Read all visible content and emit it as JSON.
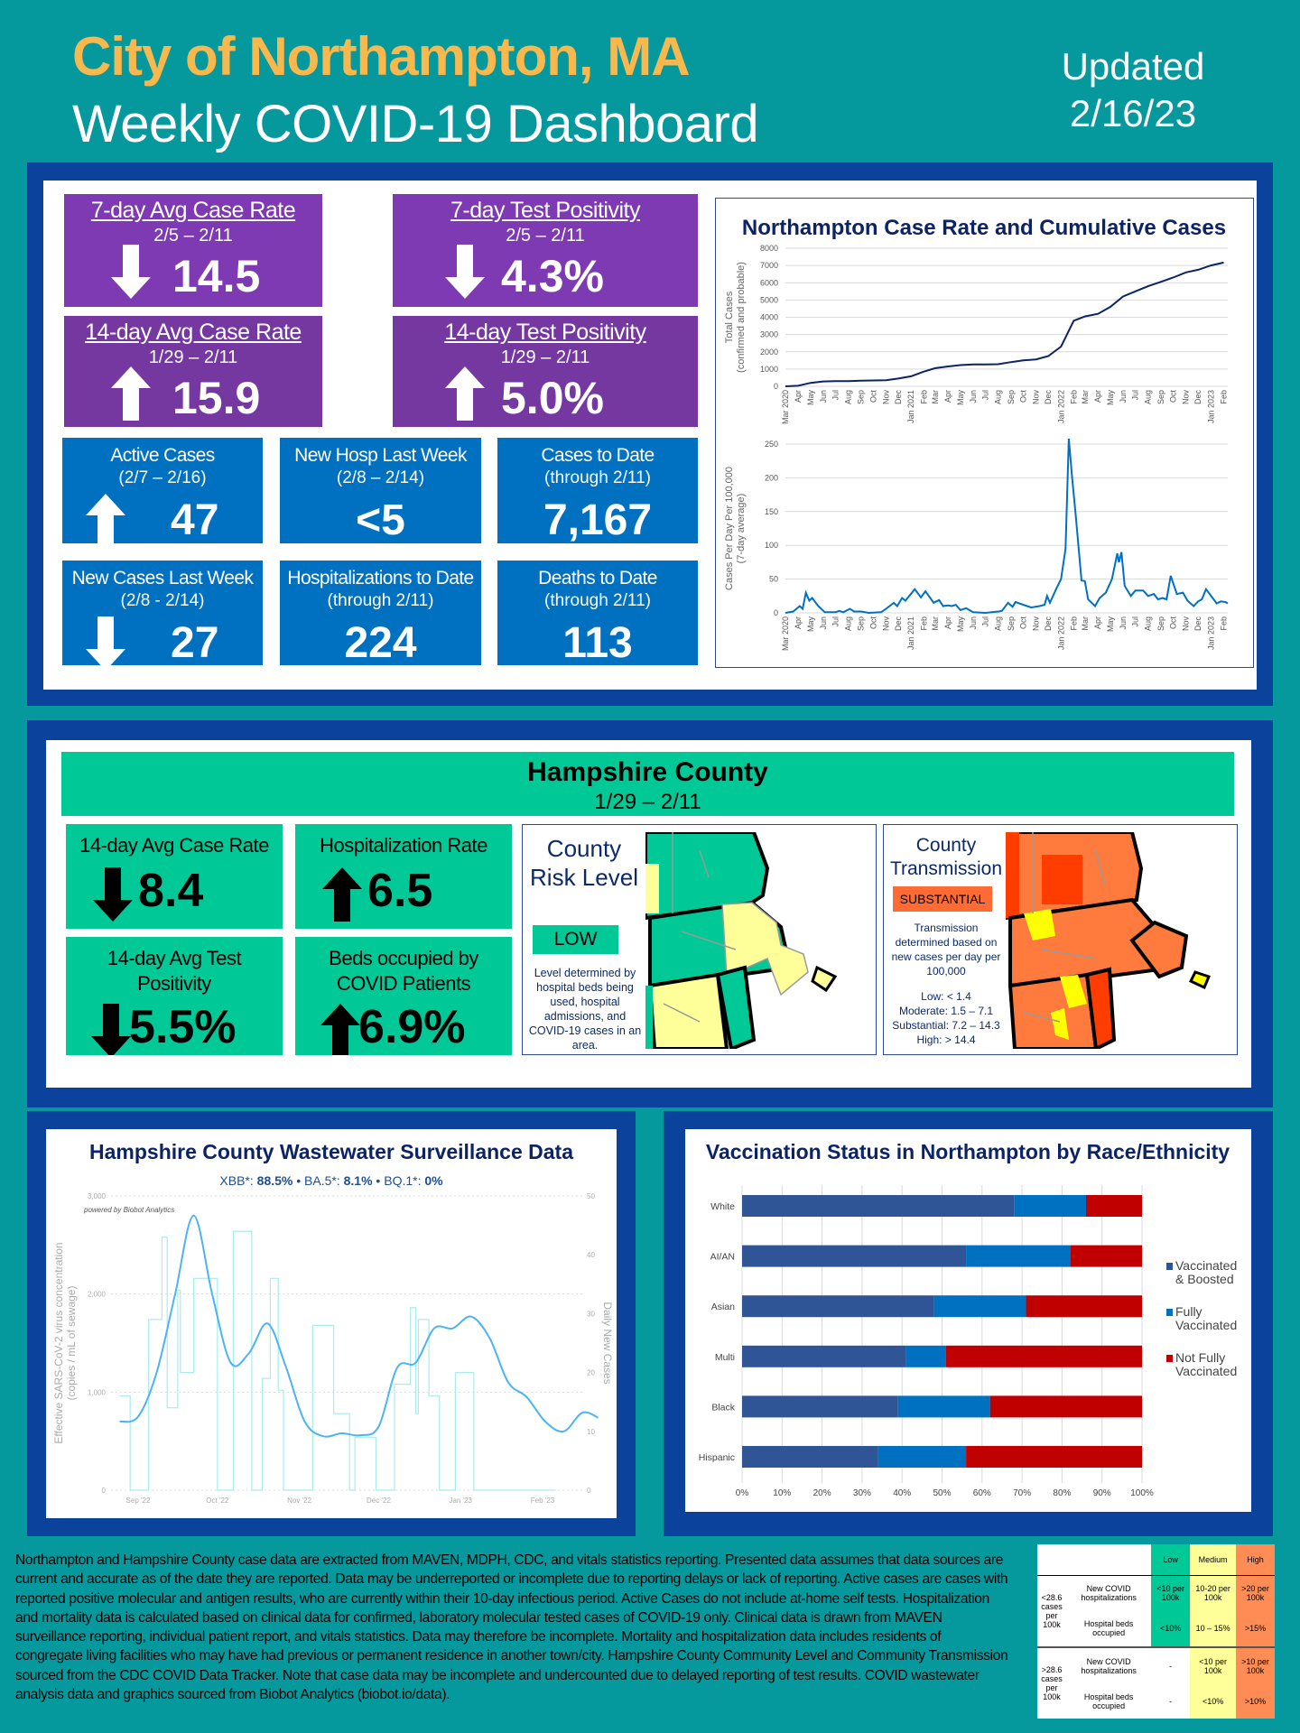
{
  "header": {
    "city": "City of Northampton, MA",
    "title": "Weekly COVID-19 Dashboard",
    "updated_label": "Updated",
    "updated_date": "2/16/23"
  },
  "city_cards": [
    {
      "title": "7-day Avg Case Rate",
      "dates": "2/5 – 2/11",
      "value": "14.5",
      "trend": "down"
    },
    {
      "title": "7-day Test Positivity",
      "dates": "2/5 – 2/11",
      "value": "4.3%",
      "trend": "down"
    },
    {
      "title": "14-day Avg Case Rate",
      "dates": "1/29 – 2/11",
      "value": "15.9",
      "trend": "up"
    },
    {
      "title": "14-day Test Positivity",
      "dates": "1/29 – 2/11",
      "value": "5.0%",
      "trend": "up"
    },
    {
      "title": "Active Cases",
      "dates": "(2/7 – 2/16)",
      "value": "47",
      "trend": "up"
    },
    {
      "title": "New Hosp Last Week",
      "dates": "(2/8 – 2/14)",
      "value": "<5",
      "trend": "none"
    },
    {
      "title": "Cases to Date",
      "dates": "(through 2/11)",
      "value": "7,167",
      "trend": "none"
    },
    {
      "title": "New Cases Last Week",
      "dates": "(2/8 - 2/14)",
      "value": "27",
      "trend": "down"
    },
    {
      "title": "Hospitalizations to Date",
      "dates": "(through 2/11)",
      "value": "224",
      "trend": "none"
    },
    {
      "title": "Deaths to Date",
      "dates": "(through 2/11)",
      "value": "113",
      "trend": "none"
    }
  ],
  "county": {
    "title": "Hampshire County",
    "dates": "1/29 – 2/11",
    "cards": [
      {
        "title": "14-day Avg Case Rate",
        "value": "8.4",
        "trend": "down"
      },
      {
        "title": "Hospitalization Rate",
        "value": "6.5",
        "trend": "up"
      },
      {
        "title": "14-day Avg Test Positivity",
        "value": "5.5%",
        "trend": "down"
      },
      {
        "title": "Beds occupied by COVID Patients",
        "value": "6.9%",
        "trend": "up"
      }
    ],
    "risk": {
      "title": "County Risk Level",
      "level": "LOW",
      "level_color": "#00c896",
      "description": "Level determined by hospital beds being used, hospital admissions, and COVID-19 cases in an area."
    },
    "transmission": {
      "title": "County Transmission",
      "level": "SUBSTANTIAL",
      "level_color": "#ff6b35",
      "description": "Transmission determined based on new cases per day per 100,000",
      "thresholds": [
        "Low: < 1.4",
        "Moderate: 1.5 – 7.1",
        "Substantial: 7.2 – 14.3",
        "High: > 14.4"
      ]
    }
  },
  "footer_text": "Northampton and Hampshire County case data are extracted from MAVEN, MDPH, CDC, and vitals statistics reporting. Presented data assumes that data sources are current and accurate as of the date they are reported. Data may be underreported or incomplete due to reporting delays or lack of reporting. Active cases are cases with reported positive molecular and antigen results, who are currently within their 10-day infectious period. Active Cases do not include at-home self tests. Hospitalization and mortality data is calculated based on clinical data for confirmed, laboratory molecular tested cases of COVID-19 only. Clinical data is drawn from MAVEN surveillance reporting, individual patient report, and vitals statistics. Data may therefore be incomplete. Mortality and hospitalization data includes residents of congregate living facilities who may have had previous or permanent residence in another town/city. Hampshire County Community Level and Community Transmission sourced from the CDC COVID Data Tracker. Note that case data may be incomplete and undercounted due to delayed reporting of test results. COVID wastewater analysis data and graphics sourced from Biobot Analytics (biobot.io/data).",
  "cdc_table": {
    "headers": [
      "Low",
      "Medium",
      "High"
    ],
    "groups": [
      {
        "label": "<28.6 cases per 100k",
        "rows": [
          {
            "metric": "New COVID hospitalizations",
            "low": "<10 per 100k",
            "medium": "10-20 per 100k",
            "high": ">20 per 100k"
          },
          {
            "metric": "Hospital beds occupied",
            "low": "<10%",
            "medium": "10 – 15%",
            "high": ">15%"
          }
        ]
      },
      {
        "label": ">28.6 cases per 100k",
        "rows": [
          {
            "metric": "New COVID hospitalizations",
            "low": "-",
            "medium": "<10 per 100k",
            "high": ">10 per 100k"
          },
          {
            "metric": "Hospital beds occupied",
            "low": "-",
            "medium": "<10%",
            "high": ">10%"
          }
        ]
      }
    ]
  },
  "chart_data": [
    {
      "type": "line",
      "title": "Northampton Case Rate and Cumulative Cases",
      "panel": "cumulative",
      "ylabel": "Total Cases (confirmed and probable)",
      "ylim": [
        0,
        8000
      ],
      "yticks": [
        0,
        1000,
        2000,
        3000,
        4000,
        5000,
        6000,
        7000,
        8000
      ],
      "grid": true,
      "color": "#0c2466",
      "xticks": [
        "Mar 2020",
        "Apr",
        "May",
        "Jun",
        "Jul",
        "Aug",
        "Sep",
        "Oct",
        "Nov",
        "Dec",
        "Jan 2021",
        "Feb",
        "Mar",
        "Apr",
        "May",
        "Jun",
        "Jul",
        "Aug",
        "Sep",
        "Oct",
        "Nov",
        "Dec",
        "Jan 2022",
        "Feb",
        "Mar",
        "Apr",
        "May",
        "Jun",
        "Jul",
        "Aug",
        "Sep",
        "Oct",
        "Nov",
        "Dec",
        "Jan 2023",
        "Feb"
      ],
      "x": [
        "2020-03",
        "2020-04",
        "2020-05",
        "2020-06",
        "2020-07",
        "2020-08",
        "2020-09",
        "2020-10",
        "2020-11",
        "2020-12",
        "2021-01",
        "2021-02",
        "2021-03",
        "2021-04",
        "2021-05",
        "2021-06",
        "2021-07",
        "2021-08",
        "2021-09",
        "2021-10",
        "2021-11",
        "2021-12",
        "2022-01",
        "2022-02",
        "2022-03",
        "2022-04",
        "2022-05",
        "2022-06",
        "2022-07",
        "2022-08",
        "2022-09",
        "2022-10",
        "2022-11",
        "2022-12",
        "2023-01",
        "2023-02"
      ],
      "values": [
        0,
        30,
        200,
        280,
        300,
        300,
        330,
        340,
        350,
        450,
        580,
        850,
        1050,
        1150,
        1230,
        1270,
        1270,
        1280,
        1400,
        1500,
        1560,
        1750,
        2300,
        3800,
        4050,
        4200,
        4600,
        5200,
        5500,
        5800,
        6050,
        6300,
        6600,
        6750,
        7000,
        7167
      ]
    },
    {
      "type": "line",
      "panel": "rate",
      "ylabel": "Cases Per Day Per 100,000 (7-day average)",
      "ylim": [
        0,
        250
      ],
      "yticks": [
        0,
        50,
        100,
        150,
        200,
        250
      ],
      "grid": true,
      "color": "#0070c0",
      "points": [
        [
          "2020-03-01",
          0
        ],
        [
          "2020-03-20",
          2
        ],
        [
          "2020-04-05",
          10
        ],
        [
          "2020-04-12",
          6
        ],
        [
          "2020-04-20",
          30
        ],
        [
          "2020-04-28",
          18
        ],
        [
          "2020-05-05",
          22
        ],
        [
          "2020-05-20",
          10
        ],
        [
          "2020-06-05",
          1
        ],
        [
          "2020-07-01",
          1
        ],
        [
          "2020-07-10",
          3
        ],
        [
          "2020-07-20",
          1
        ],
        [
          "2020-08-05",
          6
        ],
        [
          "2020-08-15",
          2
        ],
        [
          "2020-09-01",
          2
        ],
        [
          "2020-09-20",
          0
        ],
        [
          "2020-10-20",
          1
        ],
        [
          "2020-11-01",
          6
        ],
        [
          "2020-11-20",
          15
        ],
        [
          "2020-11-28",
          10
        ],
        [
          "2020-12-10",
          22
        ],
        [
          "2020-12-18",
          18
        ],
        [
          "2021-01-10",
          35
        ],
        [
          "2021-01-25",
          23
        ],
        [
          "2021-02-05",
          32
        ],
        [
          "2021-02-25",
          15
        ],
        [
          "2021-03-10",
          19
        ],
        [
          "2021-03-20",
          10
        ],
        [
          "2021-04-01",
          11
        ],
        [
          "2021-04-10",
          10
        ],
        [
          "2021-04-20",
          12
        ],
        [
          "2021-05-01",
          4
        ],
        [
          "2021-05-15",
          7
        ],
        [
          "2021-06-01",
          1
        ],
        [
          "2021-07-01",
          0
        ],
        [
          "2021-08-01",
          2
        ],
        [
          "2021-08-10",
          3
        ],
        [
          "2021-08-25",
          15
        ],
        [
          "2021-09-05",
          9
        ],
        [
          "2021-09-12",
          16
        ],
        [
          "2021-10-01",
          12
        ],
        [
          "2021-10-20",
          8
        ],
        [
          "2021-11-10",
          10
        ],
        [
          "2021-11-22",
          12
        ],
        [
          "2021-11-28",
          25
        ],
        [
          "2021-12-05",
          15
        ],
        [
          "2021-12-20",
          35
        ],
        [
          "2022-01-01",
          50
        ],
        [
          "2022-01-12",
          95
        ],
        [
          "2022-01-20",
          258
        ],
        [
          "2022-01-28",
          200
        ],
        [
          "2022-02-05",
          150
        ],
        [
          "2022-02-20",
          48
        ],
        [
          "2022-02-28",
          47
        ],
        [
          "2022-03-08",
          20
        ],
        [
          "2022-03-25",
          10
        ],
        [
          "2022-04-05",
          22
        ],
        [
          "2022-04-20",
          30
        ],
        [
          "2022-05-05",
          50
        ],
        [
          "2022-05-18",
          88
        ],
        [
          "2022-05-22",
          75
        ],
        [
          "2022-05-28",
          90
        ],
        [
          "2022-06-05",
          40
        ],
        [
          "2022-06-20",
          25
        ],
        [
          "2022-07-01",
          33
        ],
        [
          "2022-07-20",
          33
        ],
        [
          "2022-08-01",
          25
        ],
        [
          "2022-08-15",
          28
        ],
        [
          "2022-08-25",
          20
        ],
        [
          "2022-09-05",
          22
        ],
        [
          "2022-09-15",
          20
        ],
        [
          "2022-09-25",
          55
        ],
        [
          "2022-10-10",
          28
        ],
        [
          "2022-10-25",
          30
        ],
        [
          "2022-11-05",
          18
        ],
        [
          "2022-11-20",
          10
        ],
        [
          "2022-12-01",
          17
        ],
        [
          "2022-12-10",
          20
        ],
        [
          "2022-12-20",
          35
        ],
        [
          "2023-01-05",
          22
        ],
        [
          "2023-01-15",
          14
        ],
        [
          "2023-01-25",
          17
        ],
        [
          "2023-02-05",
          16
        ],
        [
          "2023-02-11",
          14
        ]
      ]
    },
    {
      "type": "line",
      "title": "Hampshire County Wastewater Surveillance Data",
      "subtitle": {
        "parts": [
          {
            "label": "XBB*: ",
            "value": "88.5%"
          },
          {
            "label": " • BA.5*: ",
            "value": "8.1%"
          },
          {
            "label": " • BQ.1*: ",
            "value": "0%"
          }
        ]
      },
      "credit": "powered by Biobot Analytics",
      "ylabel": "Effective SARS-CoV-2 virus concentration (copies / mL of sewage)",
      "ylim": [
        0,
        3000
      ],
      "yticks": [
        "0",
        "1,000",
        "2,000",
        "3,000"
      ],
      "y2label": "Daily New Cases",
      "y2lim": [
        0,
        50
      ],
      "y2ticks": [
        "0",
        "10",
        "20",
        "30",
        "40",
        "50"
      ],
      "xticks": [
        [
          "2022-09-01",
          "Sep '22"
        ],
        [
          "2022-10-01",
          "Oct '22"
        ],
        [
          "2022-11-01",
          "Nov '22"
        ],
        [
          "2022-12-01",
          "Dec '22"
        ],
        [
          "2023-01-01",
          "Jan '23"
        ],
        [
          "2023-02-01",
          "Feb '23"
        ]
      ],
      "series": [
        {
          "role": "concentration",
          "color": "#4db3f5",
          "points": [
            [
              "2022-08-25",
              700
            ],
            [
              "2022-09-01",
              750
            ],
            [
              "2022-09-08",
              1200
            ],
            [
              "2022-09-15",
              2000
            ],
            [
              "2022-09-22",
              2800
            ],
            [
              "2022-09-29",
              2000
            ],
            [
              "2022-10-06",
              1300
            ],
            [
              "2022-10-13",
              1400
            ],
            [
              "2022-10-20",
              1700
            ],
            [
              "2022-10-27",
              1250
            ],
            [
              "2022-11-03",
              700
            ],
            [
              "2022-11-10",
              550
            ],
            [
              "2022-11-17",
              580
            ],
            [
              "2022-11-24",
              560
            ],
            [
              "2022-12-01",
              650
            ],
            [
              "2022-12-08",
              1250
            ],
            [
              "2022-12-15",
              1300
            ],
            [
              "2022-12-22",
              1650
            ],
            [
              "2022-12-29",
              1650
            ],
            [
              "2023-01-05",
              1770
            ],
            [
              "2023-01-12",
              1550
            ],
            [
              "2023-01-19",
              1100
            ],
            [
              "2023-01-26",
              950
            ],
            [
              "2023-02-02",
              700
            ],
            [
              "2023-02-09",
              600
            ],
            [
              "2023-02-16",
              790
            ],
            [
              "2023-02-22",
              740
            ]
          ]
        },
        {
          "role": "daily_new_cases",
          "color": "#a8ecec",
          "points": [
            [
              "2022-08-25",
              16
            ],
            [
              "2022-08-29",
              0
            ],
            [
              "2022-09-05",
              29
            ],
            [
              "2022-09-10",
              43
            ],
            [
              "2022-09-12",
              14
            ],
            [
              "2022-09-16",
              34
            ],
            [
              "2022-09-17",
              20
            ],
            [
              "2022-09-22",
              36
            ],
            [
              "2022-10-01",
              0
            ],
            [
              "2022-10-07",
              44
            ],
            [
              "2022-10-14",
              0
            ],
            [
              "2022-10-18",
              19
            ],
            [
              "2022-10-21",
              36
            ],
            [
              "2022-10-24",
              17
            ],
            [
              "2022-10-26",
              0
            ],
            [
              "2022-11-06",
              28
            ],
            [
              "2022-11-14",
              13
            ],
            [
              "2022-11-20",
              0
            ],
            [
              "2022-11-22",
              9
            ],
            [
              "2022-11-30",
              0
            ],
            [
              "2022-12-07",
              18
            ],
            [
              "2022-12-13",
              31
            ],
            [
              "2022-12-15",
              13
            ],
            [
              "2022-12-16",
              29
            ],
            [
              "2022-12-20",
              16
            ],
            [
              "2022-12-24",
              0
            ],
            [
              "2022-12-30",
              20
            ],
            [
              "2023-01-06",
              0
            ],
            [
              "2023-02-06",
              0
            ]
          ]
        }
      ]
    },
    {
      "type": "bar",
      "orientation": "horizontal",
      "stacked": true,
      "title": "Vaccination Status in Northampton by Race/Ethnicity",
      "categories": [
        "White",
        "AI/AN",
        "Asian",
        "Multi",
        "Black",
        "Hispanic"
      ],
      "xticks": [
        "0%",
        "10%",
        "20%",
        "30%",
        "40%",
        "50%",
        "60%",
        "70%",
        "80%",
        "90%",
        "100%"
      ],
      "xlim": [
        0,
        100
      ],
      "legend": "right",
      "series": [
        {
          "name": "Vaccinated & Boosted",
          "color": "#2f5597",
          "values": [
            68,
            56,
            48,
            41,
            39,
            34
          ]
        },
        {
          "name": "Fully Vaccinated",
          "color": "#0070c0",
          "values": [
            18,
            26,
            23,
            10,
            23,
            22
          ]
        },
        {
          "name": "Not Fully Vaccinated",
          "color": "#c00000",
          "values": [
            14,
            18,
            29,
            49,
            38,
            44
          ]
        }
      ]
    }
  ]
}
